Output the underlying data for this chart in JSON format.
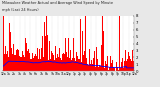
{
  "title": "Milwaukee Weather Actual and Average Wind Speed by Minute mph (Last 24 Hours)",
  "subtitle": "mph (Last 24 Hours)",
  "background_color": "#e8e8e8",
  "plot_background": "#ffffff",
  "bar_color": "#ff0000",
  "line_color": "#0000ff",
  "grid_color": "#aaaaaa",
  "ylim": [
    0,
    8
  ],
  "yticks": [
    0,
    1,
    2,
    3,
    4,
    5,
    6,
    7,
    8
  ],
  "n_points": 1440,
  "seed": 42,
  "n_xticks": 25
}
